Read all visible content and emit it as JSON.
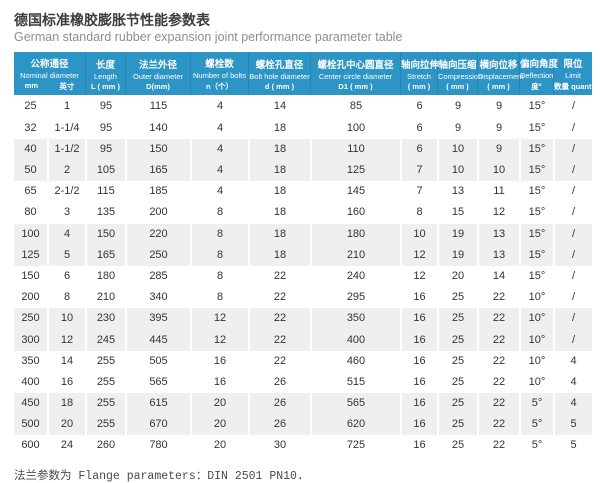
{
  "colors": {
    "header_bg": "#2D95C6",
    "stripe_bg": "#EFEFEF",
    "header_text": "#FFFFFF",
    "body_text": "#333333"
  },
  "chart_data": {
    "type": "table",
    "title": "德国标准橡胶膨胀节性能参数表",
    "subtitle": "German standard rubber expansion joint performance parameter table",
    "footnote": "法兰参数为 Flange parameters：DIN 2501 PN10.",
    "columns": [
      {
        "zh": "公称通径",
        "en": "Nominal diameter",
        "units": [
          "mm",
          "英寸"
        ],
        "span": 2
      },
      {
        "zh": "长度",
        "en": "Length",
        "units": [
          "L ( mm )"
        ],
        "span": 1
      },
      {
        "zh": "法兰外径",
        "en": "Outer diameter",
        "units": [
          "D(mm)"
        ],
        "span": 1
      },
      {
        "zh": "螺栓数",
        "en": "Number of bolts",
        "units": [
          "n（个）"
        ],
        "span": 1
      },
      {
        "zh": "螺栓孔直径",
        "en": "Bolt hole diameter",
        "units": [
          "d ( mm )"
        ],
        "span": 1
      },
      {
        "zh": "螺栓孔中心圆直径",
        "en": "Center circle diameter",
        "units": [
          "D1 ( mm )"
        ],
        "span": 1
      },
      {
        "zh": "轴向拉伸",
        "en": "Stretch",
        "units": [
          "( mm )"
        ],
        "span": 1
      },
      {
        "zh": "轴向压缩",
        "en": "Compression",
        "units": [
          "( mm )"
        ],
        "span": 1
      },
      {
        "zh": "横向位移",
        "en": "Displacement",
        "units": [
          "( mm )"
        ],
        "span": 1
      },
      {
        "zh": "偏向角度",
        "en": "Deflection",
        "units": [
          "度°"
        ],
        "span": 1
      },
      {
        "zh": "限位",
        "en": "Limit",
        "units": [
          "数量 quantity"
        ],
        "span": 1
      }
    ],
    "rows": [
      [
        "25",
        "1",
        "95",
        "115",
        "4",
        "14",
        "85",
        "6",
        "9",
        "9",
        "15°",
        "/"
      ],
      [
        "32",
        "1-1/4",
        "95",
        "140",
        "4",
        "18",
        "100",
        "6",
        "9",
        "9",
        "15°",
        "/"
      ],
      [
        "40",
        "1-1/2",
        "95",
        "150",
        "4",
        "18",
        "110",
        "6",
        "10",
        "9",
        "15°",
        "/"
      ],
      [
        "50",
        "2",
        "105",
        "165",
        "4",
        "18",
        "125",
        "7",
        "10",
        "10",
        "15°",
        "/"
      ],
      [
        "65",
        "2-1/2",
        "115",
        "185",
        "4",
        "18",
        "145",
        "7",
        "13",
        "11",
        "15°",
        "/"
      ],
      [
        "80",
        "3",
        "135",
        "200",
        "8",
        "18",
        "160",
        "8",
        "15",
        "12",
        "15°",
        "/"
      ],
      [
        "100",
        "4",
        "150",
        "220",
        "8",
        "18",
        "180",
        "10",
        "19",
        "13",
        "15°",
        "/"
      ],
      [
        "125",
        "5",
        "165",
        "250",
        "8",
        "18",
        "210",
        "12",
        "19",
        "13",
        "15°",
        "/"
      ],
      [
        "150",
        "6",
        "180",
        "285",
        "8",
        "22",
        "240",
        "12",
        "20",
        "14",
        "15°",
        "/"
      ],
      [
        "200",
        "8",
        "210",
        "340",
        "8",
        "22",
        "295",
        "16",
        "25",
        "22",
        "10°",
        "/"
      ],
      [
        "250",
        "10",
        "230",
        "395",
        "12",
        "22",
        "350",
        "16",
        "25",
        "22",
        "10°",
        "/"
      ],
      [
        "300",
        "12",
        "245",
        "445",
        "12",
        "22",
        "400",
        "16",
        "25",
        "22",
        "10°",
        "/"
      ],
      [
        "350",
        "14",
        "255",
        "505",
        "16",
        "22",
        "460",
        "16",
        "25",
        "22",
        "10°",
        "4"
      ],
      [
        "400",
        "16",
        "255",
        "565",
        "16",
        "26",
        "515",
        "16",
        "25",
        "22",
        "10°",
        "4"
      ],
      [
        "450",
        "18",
        "255",
        "615",
        "20",
        "26",
        "565",
        "16",
        "25",
        "22",
        "5°",
        "4"
      ],
      [
        "500",
        "20",
        "255",
        "670",
        "20",
        "26",
        "620",
        "16",
        "25",
        "22",
        "5°",
        "5"
      ],
      [
        "600",
        "24",
        "260",
        "780",
        "20",
        "30",
        "725",
        "16",
        "25",
        "22",
        "5°",
        "5"
      ]
    ]
  }
}
